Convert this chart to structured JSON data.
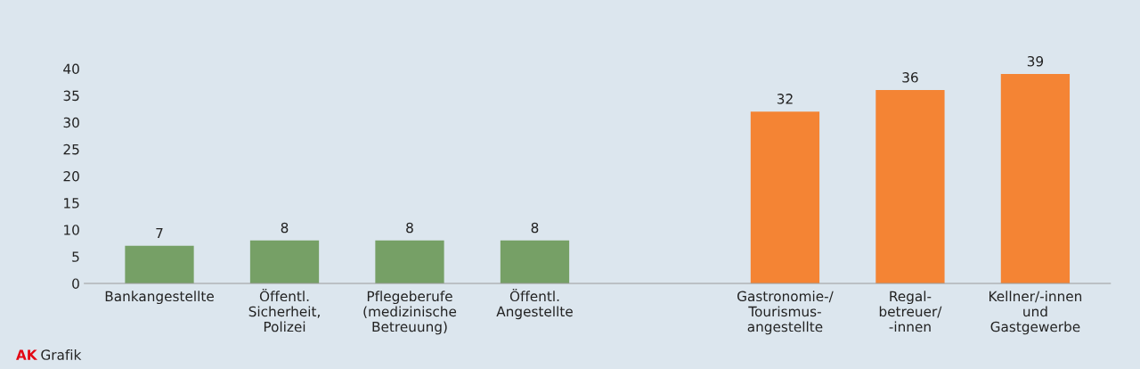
{
  "chart_data": {
    "type": "bar",
    "categories": [
      "Bankangestellte",
      "Öffentl.\nSicherheit,\nPolizei",
      "Pflegeberufe\n(medizinische\nBetreuung)",
      "Öffentl.\nAngestellte",
      null,
      "Gastronomie-/\nTourismus-\nangestellte",
      "Regal-\nbetreuer/\n-innen",
      "Kellner/-innen\nund\nGastgewerbe"
    ],
    "values": [
      7,
      8,
      8,
      8,
      null,
      32,
      36,
      39
    ],
    "colors": [
      "#76a066",
      "#76a066",
      "#76a066",
      "#76a066",
      "#76a066",
      "#f48434",
      "#f48434",
      "#f48434"
    ],
    "ylim": [
      0,
      40
    ],
    "yticks": [
      0,
      5,
      10,
      15,
      20,
      25,
      30,
      35,
      40
    ],
    "data_labels": true,
    "grid": false,
    "legend": false,
    "annotations": [
      "AK Grafik"
    ]
  }
}
